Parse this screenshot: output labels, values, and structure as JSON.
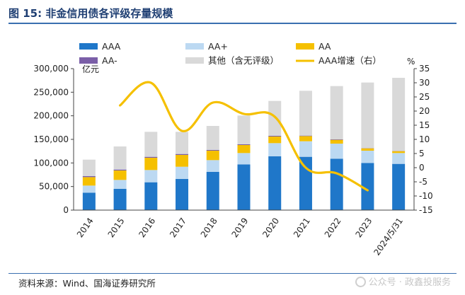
{
  "header": {
    "title": "图 15:  非金信用债各评级存量规模"
  },
  "footer": {
    "source": "资料来源：Wind、国海证券研究所",
    "watermark": "公众号 · 政鑫投服务"
  },
  "chart_data": {
    "type": "bar",
    "stacked": true,
    "categories": [
      "2014",
      "2015",
      "2016",
      "2017",
      "2018",
      "2019",
      "2020",
      "2021",
      "2022",
      "2023",
      "2024/5/31"
    ],
    "series": [
      {
        "name": "AAA",
        "color": "#1f77c9",
        "values": [
          37000,
          45000,
          59000,
          66000,
          81000,
          97000,
          114000,
          113000,
          109000,
          100000,
          98000
        ]
      },
      {
        "name": "AA+",
        "color": "#bcd9f2",
        "values": [
          15000,
          19000,
          26000,
          26000,
          25000,
          24000,
          28000,
          33000,
          32000,
          26000,
          23000
        ]
      },
      {
        "name": "AA",
        "color": "#f5c000",
        "values": [
          18000,
          20000,
          26000,
          25000,
          20000,
          17000,
          14000,
          11000,
          8000,
          5000,
          4000
        ]
      },
      {
        "name": "AA-",
        "color": "#7b5fa8",
        "values": [
          2000,
          2000,
          2000,
          2000,
          1500,
          1500,
          1500,
          1000,
          1000,
          500,
          500
        ]
      },
      {
        "name": "其他（含无评级）",
        "color": "#d9d9d9",
        "values": [
          35000,
          49000,
          53000,
          47000,
          51000,
          61000,
          74000,
          95000,
          113000,
          139000,
          155000
        ]
      }
    ],
    "line": {
      "name": "AAA增速（右）",
      "color": "#f5c000",
      "x": [
        "2015",
        "2016",
        "2017",
        "2018",
        "2019",
        "2020",
        "2021",
        "2022",
        "2023"
      ],
      "values": [
        22,
        30,
        13,
        23,
        19,
        18,
        0,
        -2,
        -8
      ]
    },
    "ylim": [
      0,
      300000
    ],
    "yticks": [
      "0",
      "50,000",
      "100,000",
      "150,000",
      "200,000",
      "250,000",
      "300,000"
    ],
    "y2lim": [
      -15,
      35
    ],
    "y2ticks": [
      "-15",
      "-10",
      "-5",
      "0",
      "5",
      "10",
      "15",
      "20",
      "25",
      "30",
      "35"
    ],
    "ylabel": "亿元",
    "y2label": "%"
  }
}
